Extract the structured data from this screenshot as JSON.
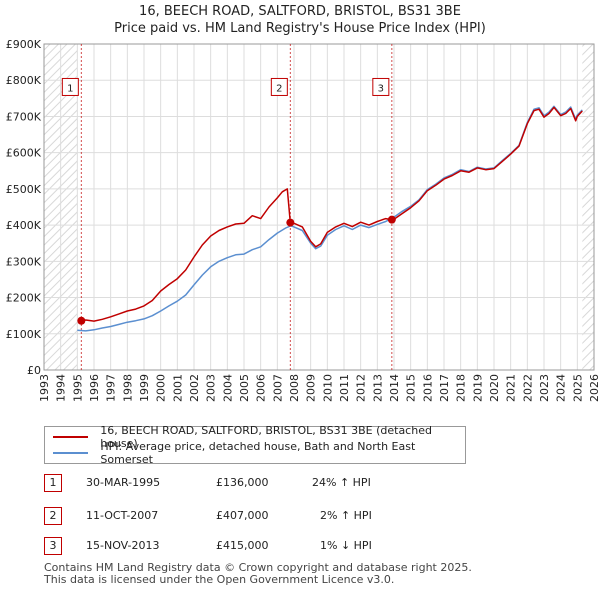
{
  "chart_data": {
    "type": "line",
    "title": "16, BEECH ROAD, SALTFORD, BRISTOL, BS31 3BE",
    "subtitle": "Price paid vs. HM Land Registry's House Price Index (HPI)",
    "xlabel": "",
    "ylabel": "",
    "xlim": [
      1993,
      2026
    ],
    "ylim": [
      0,
      900000
    ],
    "y_ticks": [
      0,
      100000,
      200000,
      300000,
      400000,
      500000,
      600000,
      700000,
      800000,
      900000
    ],
    "y_tick_labels": [
      "£0",
      "£100K",
      "£200K",
      "£300K",
      "£400K",
      "£500K",
      "£600K",
      "£700K",
      "£800K",
      "£900K"
    ],
    "x_ticks": [
      1993,
      1994,
      1995,
      1996,
      1997,
      1998,
      1999,
      2000,
      2001,
      2002,
      2003,
      2004,
      2005,
      2006,
      2007,
      2008,
      2009,
      2010,
      2011,
      2012,
      2013,
      2014,
      2015,
      2016,
      2017,
      2018,
      2019,
      2020,
      2021,
      2022,
      2023,
      2024,
      2025,
      2026
    ],
    "x_tick_labels": [
      "1993",
      "1994",
      "1995",
      "1996",
      "1997",
      "1998",
      "1999",
      "2000",
      "2001",
      "2002",
      "2003",
      "2004",
      "2005",
      "2006",
      "2007",
      "2008",
      "2009",
      "2010",
      "2011",
      "2012",
      "2013",
      "2014",
      "2015",
      "2016",
      "2017",
      "2018",
      "2019",
      "2020",
      "2021",
      "2022",
      "2023",
      "2024",
      "2025",
      "2026"
    ],
    "grid": true,
    "hatched_ranges": [
      [
        1993,
        1995.0
      ],
      [
        2025.3,
        2026
      ]
    ],
    "series": [
      {
        "name": "16, BEECH ROAD, SALTFORD, BRISTOL, BS31 3BE (detached house)",
        "color": "#c00000",
        "x": [
          1995.24,
          1995.5,
          1996,
          1996.5,
          1997,
          1997.5,
          1998,
          1998.5,
          1999,
          1999.5,
          2000,
          2000.5,
          2001,
          2001.5,
          2002,
          2002.5,
          2003,
          2003.5,
          2004,
          2004.5,
          2005,
          2005.5,
          2006,
          2006.5,
          2007,
          2007.3,
          2007.6,
          2007.78,
          2008,
          2008.5,
          2009,
          2009.3,
          2009.6,
          2010,
          2010.5,
          2011,
          2011.5,
          2012,
          2012.5,
          2013,
          2013.5,
          2013.87,
          2014,
          2014.5,
          2015,
          2015.5,
          2016,
          2016.5,
          2017,
          2017.5,
          2018,
          2018.5,
          2019,
          2019.5,
          2020,
          2020.5,
          2021,
          2021.5,
          2022,
          2022.4,
          2022.7,
          2023,
          2023.3,
          2023.6,
          2024,
          2024.3,
          2024.6,
          2024.9,
          2025,
          2025.3
        ],
        "y": [
          136000,
          138000,
          135000,
          140000,
          147000,
          155000,
          163000,
          168000,
          177000,
          192000,
          218000,
          236000,
          252000,
          276000,
          312000,
          345000,
          370000,
          385000,
          395000,
          403000,
          405000,
          426000,
          418000,
          450000,
          475000,
          492000,
          500000,
          407000,
          405000,
          395000,
          355000,
          340000,
          348000,
          380000,
          395000,
          405000,
          396000,
          408000,
          400000,
          410000,
          418000,
          415000,
          416000,
          432000,
          448000,
          467000,
          495000,
          510000,
          527000,
          537000,
          550000,
          546000,
          558000,
          553000,
          556000,
          576000,
          596000,
          618000,
          680000,
          716000,
          720000,
          698000,
          708000,
          725000,
          702000,
          708000,
          722000,
          688000,
          700000,
          715000
        ]
      },
      {
        "name": "HPI: Average price, detached house, Bath and North East Somerset",
        "color": "#5b8fd0",
        "x": [
          1995.0,
          1995.5,
          1996,
          1996.5,
          1997,
          1997.5,
          1998,
          1998.5,
          1999,
          1999.5,
          2000,
          2000.5,
          2001,
          2001.5,
          2002,
          2002.5,
          2003,
          2003.5,
          2004,
          2004.5,
          2005,
          2005.5,
          2006,
          2006.5,
          2007,
          2007.5,
          2007.8,
          2008,
          2008.5,
          2009,
          2009.3,
          2009.6,
          2010,
          2010.5,
          2011,
          2011.5,
          2012,
          2012.5,
          2013,
          2013.5,
          2013.87,
          2014,
          2014.5,
          2015,
          2015.5,
          2016,
          2016.5,
          2017,
          2017.5,
          2018,
          2018.5,
          2019,
          2019.5,
          2020,
          2020.5,
          2021,
          2021.5,
          2022,
          2022.4,
          2022.7,
          2023,
          2023.3,
          2023.6,
          2024,
          2024.3,
          2024.6,
          2024.9,
          2025,
          2025.3
        ],
        "y": [
          110000,
          108000,
          111000,
          116000,
          120000,
          126000,
          132000,
          136000,
          141000,
          150000,
          163000,
          177000,
          190000,
          207000,
          235000,
          262000,
          285000,
          300000,
          310000,
          318000,
          320000,
          332000,
          340000,
          360000,
          378000,
          392000,
          398000,
          395000,
          385000,
          350000,
          335000,
          342000,
          372000,
          388000,
          398000,
          388000,
          400000,
          393000,
          402000,
          410000,
          419000,
          422000,
          438000,
          452000,
          470000,
          498000,
          513000,
          530000,
          540000,
          553000,
          548000,
          560000,
          555000,
          558000,
          578000,
          598000,
          620000,
          683000,
          720000,
          724000,
          702000,
          712000,
          728000,
          705000,
          712000,
          726000,
          692000,
          704000,
          718000
        ]
      }
    ],
    "sales": [
      {
        "label": "1",
        "x": 1995.24,
        "y": 136000
      },
      {
        "label": "2",
        "x": 2007.78,
        "y": 407000
      },
      {
        "label": "3",
        "x": 2013.87,
        "y": 415000
      }
    ],
    "sale_marker_y": 780000
  },
  "legend": {
    "property": "16, BEECH ROAD, SALTFORD, BRISTOL, BS31 3BE (detached house)",
    "hpi": "HPI: Average price, detached house, Bath and North East Somerset",
    "property_color": "#c00000",
    "hpi_color": "#5b8fd0"
  },
  "transactions": [
    {
      "num": "1",
      "date": "30-MAR-1995",
      "price": "£136,000",
      "hpi": "24% ↑ HPI"
    },
    {
      "num": "2",
      "date": "11-OCT-2007",
      "price": "£407,000",
      "hpi": "2% ↑ HPI"
    },
    {
      "num": "3",
      "date": "15-NOV-2013",
      "price": "£415,000",
      "hpi": "1% ↓ HPI"
    }
  ],
  "footer": {
    "line1": "Contains HM Land Registry data © Crown copyright and database right 2025.",
    "line2": "This data is licensed under the Open Government Licence v3.0."
  }
}
